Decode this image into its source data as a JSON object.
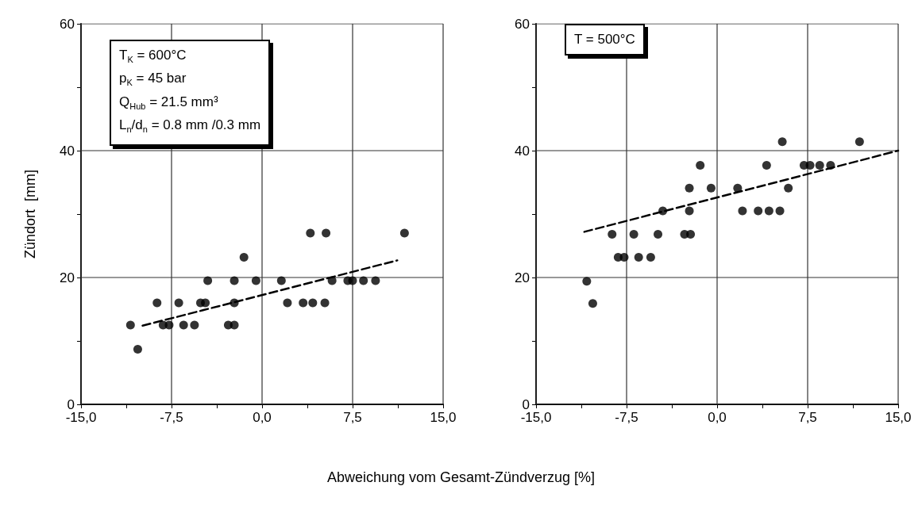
{
  "chart_data": [
    {
      "type": "scatter",
      "ylabel": "Zündort  [mm]",
      "xlabel": "Abweichung vom Gesamt-Zündverzug  [%]",
      "annotations": [
        "T$_{K}$ = 600°C",
        "p$_{K}$ = 45 bar",
        "Q$_{Hub}$ = 21.5 mm³",
        "L$_{n}$/d$_{n}$ = 0.8 mm /0.3 mm"
      ],
      "xlim": [
        -15,
        15
      ],
      "xticks": [
        {
          "value": -15,
          "label": "-15,0"
        },
        {
          "value": -11.25,
          "label": null
        },
        {
          "value": -7.5,
          "label": "-7,5"
        },
        {
          "value": -3.75,
          "label": null
        },
        {
          "value": 0,
          "label": "0,0"
        },
        {
          "value": 3.75,
          "label": null
        },
        {
          "value": 7.5,
          "label": "7,5"
        },
        {
          "value": 11.25,
          "label": null
        },
        {
          "value": 15,
          "label": "15,0"
        }
      ],
      "ylim": [
        0,
        60
      ],
      "yticks": [
        0,
        {
          "value": 10,
          "label": null
        },
        20,
        {
          "value": 30,
          "label": null
        },
        40,
        {
          "value": 50,
          "label": null
        },
        60
      ],
      "grid": true,
      "series": [
        {
          "marker": "circle",
          "color": "#000000",
          "x": [
            4.0,
            5.3,
            11.8,
            -1.5,
            -4.5,
            -2.3,
            -0.5,
            1.6,
            5.8,
            7.1,
            7.5,
            8.4,
            9.4,
            -8.7,
            -6.9,
            -5.1,
            -4.7,
            -2.3,
            2.1,
            3.4,
            4.2,
            5.2,
            -10.9,
            -8.2,
            -7.7,
            -6.5,
            -5.6,
            -2.8,
            -2.3,
            -10.3
          ],
          "values": [
            27,
            27,
            27,
            23.2,
            19.5,
            19.5,
            19.5,
            19.5,
            19.5,
            19.5,
            19.5,
            19.5,
            19.5,
            16,
            16,
            16,
            16,
            16,
            16,
            16,
            16,
            16,
            12.5,
            12.5,
            12.5,
            12.5,
            12.5,
            12.5,
            12.5,
            8.7
          ]
        },
        {
          "type": "line",
          "marker": "none",
          "line_style": "dashed",
          "color": "#000000",
          "x": [
            -9.9,
            11.2
          ],
          "values": [
            12.4,
            22.7
          ]
        }
      ]
    },
    {
      "type": "scatter",
      "annotations": [
        "T = 500°C"
      ],
      "xlim": [
        -15,
        15
      ],
      "xticks": [
        {
          "value": -15,
          "label": "-15,0"
        },
        {
          "value": -11.25,
          "label": null
        },
        {
          "value": -7.5,
          "label": "-7,5"
        },
        {
          "value": -3.75,
          "label": null
        },
        {
          "value": 0,
          "label": "0,0"
        },
        {
          "value": 3.75,
          "label": null
        },
        {
          "value": 7.5,
          "label": "7,5"
        },
        {
          "value": 11.25,
          "label": null
        },
        {
          "value": 15,
          "label": "15,0"
        }
      ],
      "ylim": [
        0,
        60
      ],
      "yticks": [
        0,
        {
          "value": 10,
          "label": null
        },
        20,
        {
          "value": 30,
          "label": null
        },
        40,
        {
          "value": 50,
          "label": null
        },
        60
      ],
      "grid": true,
      "series": [
        {
          "marker": "circle",
          "color": "#000000",
          "x": [
            5.4,
            11.8,
            -1.4,
            4.1,
            7.2,
            7.7,
            8.5,
            9.4,
            -2.3,
            -0.5,
            1.7,
            5.9,
            -4.5,
            -2.3,
            2.1,
            3.4,
            4.3,
            5.2,
            -8.7,
            -6.9,
            -4.9,
            -2.7,
            -2.2,
            -8.2,
            -7.7,
            -6.5,
            -5.5,
            -10.8,
            -10.3
          ],
          "values": [
            41.4,
            41.4,
            37.7,
            37.7,
            37.7,
            37.7,
            37.7,
            37.7,
            34.1,
            34.1,
            34.1,
            34.1,
            30.5,
            30.5,
            30.5,
            30.5,
            30.5,
            30.5,
            26.8,
            26.8,
            26.8,
            26.8,
            26.8,
            23.2,
            23.2,
            23.2,
            23.2,
            19.4,
            15.9
          ]
        },
        {
          "type": "line",
          "marker": "none",
          "line_style": "dashed",
          "color": "#000000",
          "x": [
            -11.0,
            15
          ],
          "values": [
            27.2,
            40
          ]
        }
      ]
    }
  ]
}
